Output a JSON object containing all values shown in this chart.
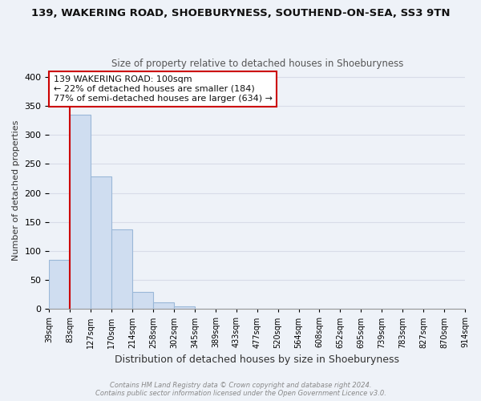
{
  "title_main": "139, WAKERING ROAD, SHOEBURYNESS, SOUTHEND-ON-SEA, SS3 9TN",
  "title_sub": "Size of property relative to detached houses in Shoeburyness",
  "xlabel": "Distribution of detached houses by size in Shoeburyness",
  "ylabel": "Number of detached properties",
  "bar_values": [
    84,
    335,
    228,
    137,
    29,
    12,
    4,
    1,
    0,
    1,
    1,
    0,
    0,
    1,
    0,
    1,
    0,
    1,
    1,
    1
  ],
  "bin_labels": [
    "39sqm",
    "83sqm",
    "127sqm",
    "170sqm",
    "214sqm",
    "258sqm",
    "302sqm",
    "345sqm",
    "389sqm",
    "433sqm",
    "477sqm",
    "520sqm",
    "564sqm",
    "608sqm",
    "652sqm",
    "695sqm",
    "739sqm",
    "783sqm",
    "827sqm",
    "870sqm",
    "914sqm"
  ],
  "bar_color": "#cfddf0",
  "bar_edge_color": "#9ab8d8",
  "highlight_line_color": "#cc0000",
  "annotation_text": "139 WAKERING ROAD: 100sqm\n← 22% of detached houses are smaller (184)\n77% of semi-detached houses are larger (634) →",
  "annotation_box_color": "#ffffff",
  "annotation_box_edge": "#cc0000",
  "ylim": [
    0,
    410
  ],
  "yticks": [
    0,
    50,
    100,
    150,
    200,
    250,
    300,
    350,
    400
  ],
  "footer_text": "Contains HM Land Registry data © Crown copyright and database right 2024.\nContains public sector information licensed under the Open Government Licence v3.0.",
  "background_color": "#eef2f8",
  "grid_color": "#d8dce8",
  "title_color": "#111111",
  "subtitle_color": "#555555"
}
